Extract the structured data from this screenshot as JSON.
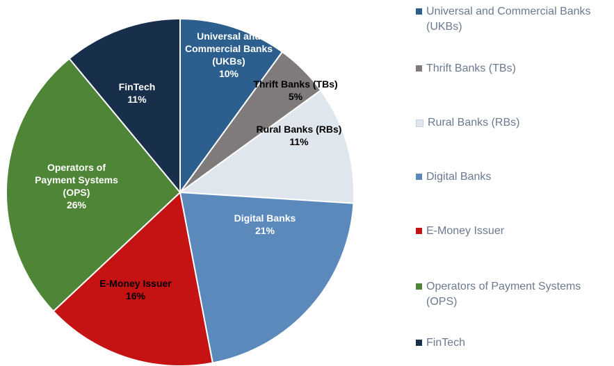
{
  "chart_data": {
    "type": "pie",
    "title": "",
    "slices": [
      {
        "key": "ukb",
        "legend": "Universal and Commercial Banks (UKBs)",
        "label_lines": [
          "Universal and",
          "Commercial Banks",
          "(UKBs)"
        ],
        "percent_label": "10%",
        "value": 10,
        "color": "#2d5f8e",
        "text_color": "#ffffff"
      },
      {
        "key": "tb",
        "legend": "Thrift Banks (TBs)",
        "label_lines": [
          "Thrift Banks (TBs)"
        ],
        "percent_label": "5%",
        "value": 5,
        "color": "#7f7b7b",
        "text_color": "#000000"
      },
      {
        "key": "rb",
        "legend": "Rural Banks (RBs)",
        "label_lines": [
          "Rural Banks (RBs)"
        ],
        "percent_label": "11%",
        "value": 11,
        "color": "#dfe6ed",
        "text_color": "#000000"
      },
      {
        "key": "digital",
        "legend": "Digital Banks",
        "label_lines": [
          "Digital Banks"
        ],
        "percent_label": "21%",
        "value": 21,
        "color": "#5b89bc",
        "text_color": "#ffffff"
      },
      {
        "key": "emoney",
        "legend": "E-Money Issuer",
        "label_lines": [
          "E-Money Issuer"
        ],
        "percent_label": "16%",
        "value": 16,
        "color": "#c51212",
        "text_color": "#000000"
      },
      {
        "key": "ops",
        "legend": "Operators of Payment Systems (OPS)",
        "label_lines": [
          "Operators of",
          "Payment Systems",
          "(OPS)"
        ],
        "percent_label": "26%",
        "value": 26,
        "color": "#4e8536",
        "text_color": "#ffffff"
      },
      {
        "key": "fintech",
        "legend": "FinTech",
        "label_lines": [
          "FinTech"
        ],
        "percent_label": "11%",
        "value": 11,
        "color": "#182f4b",
        "text_color": "#ffffff"
      }
    ],
    "legend_position": "right"
  }
}
